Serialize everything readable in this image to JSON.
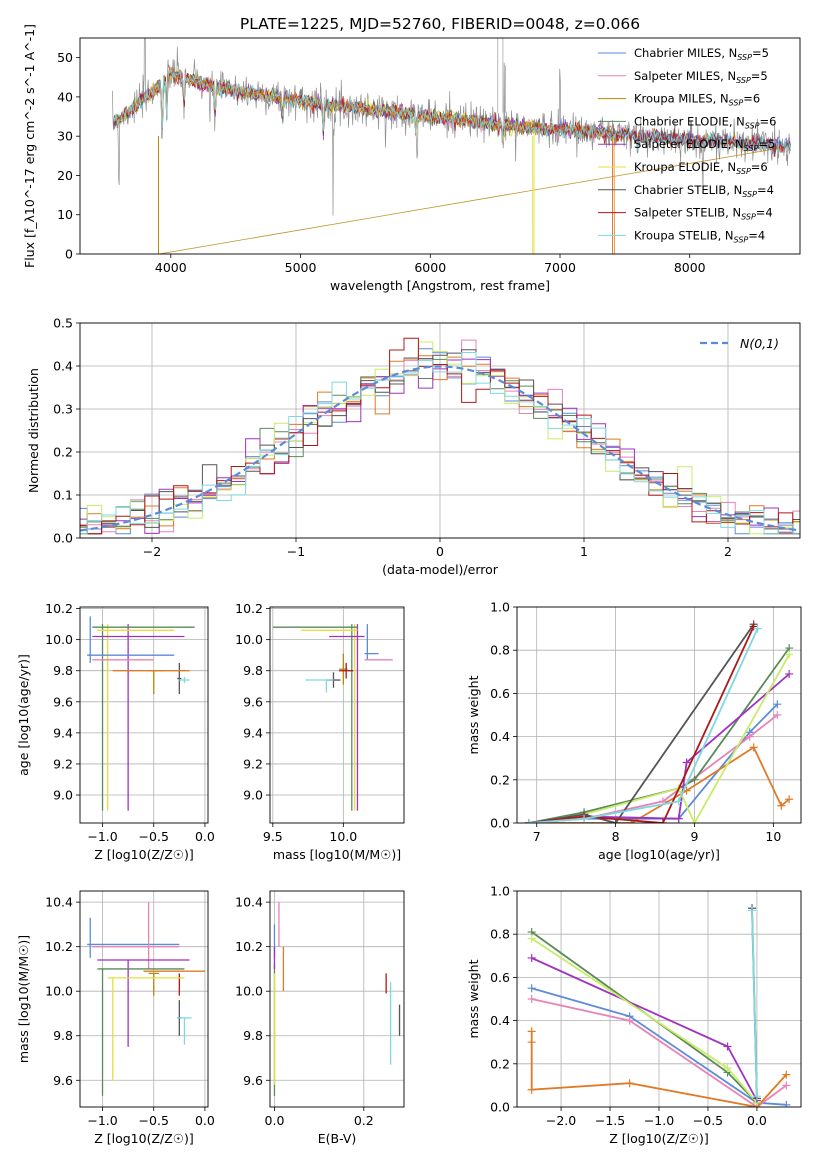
{
  "title": "PLATE=1225, MJD=52760, FIBERID=0048, z=0.066",
  "colors": {
    "c1": "#5b8bd8",
    "c2": "#e882b9",
    "c3": "#b8860b",
    "c4": "#5a8a5a",
    "c5": "#a032c0",
    "c6": "#e2e03c",
    "c7": "#555555",
    "c8": "#b01818",
    "c9": "#7fd8e0",
    "orange": "#e07a25",
    "lime": "#c8ec6a",
    "gray": "#909090",
    "dark": "#444444"
  },
  "chart_data": [
    {
      "id": "spectrum",
      "type": "line",
      "title": "PLATE=1225, MJD=52760, FIBERID=0048, z=0.066",
      "xlabel": "wavelength [Angstrom, rest frame]",
      "ylabel": "Flux [f_λ10^-17 erg cm^-2 s^-1 A^-1]",
      "xlim": [
        3300,
        8850
      ],
      "ylim": [
        0,
        55
      ],
      "xticks": [
        4000,
        5000,
        6000,
        7000,
        8000
      ],
      "yticks": [
        0,
        10,
        20,
        30,
        40,
        50
      ],
      "legend_position": "top-right",
      "legend": [
        {
          "text": "Chabrier MILES, N",
          "sub": "SSP",
          "tail": "=5"
        },
        {
          "text": "Salpeter MILES, N",
          "sub": "SSP",
          "tail": "=5"
        },
        {
          "text": "Kroupa MILES, N",
          "sub": "SSP",
          "tail": "=6"
        },
        {
          "text": "Chabrier ELODIE, N",
          "sub": "SSP",
          "tail": "=6"
        },
        {
          "text": "Salpeter ELODIE, N",
          "sub": "SSP",
          "tail": "=5"
        },
        {
          "text": "Kroupa ELODIE, N",
          "sub": "SSP",
          "tail": "=6"
        },
        {
          "text": "Chabrier STELIB, N",
          "sub": "SSP",
          "tail": "=4"
        },
        {
          "text": "Salpeter STELIB, N",
          "sub": "SSP",
          "tail": "=4"
        },
        {
          "text": "Kroupa STELIB, N",
          "sub": "SSP",
          "tail": "=4"
        }
      ],
      "continuum": [
        [
          3550,
          33
        ],
        [
          3700,
          37
        ],
        [
          3850,
          41
        ],
        [
          4000,
          46
        ],
        [
          4100,
          45
        ],
        [
          4200,
          44
        ],
        [
          4300,
          43
        ],
        [
          4400,
          42
        ],
        [
          4600,
          41
        ],
        [
          4800,
          40
        ],
        [
          5000,
          39
        ],
        [
          5200,
          38
        ],
        [
          5500,
          37
        ],
        [
          5800,
          36
        ],
        [
          6000,
          35
        ],
        [
          6300,
          34
        ],
        [
          6500,
          33
        ],
        [
          6800,
          32
        ],
        [
          7000,
          32
        ],
        [
          7300,
          31
        ],
        [
          7600,
          30
        ],
        [
          8000,
          29
        ],
        [
          8300,
          28.5
        ],
        [
          8600,
          28
        ],
        [
          8800,
          27.5
        ]
      ],
      "absorption_lines": [
        [
          3933,
          -14
        ],
        [
          3968,
          -10
        ],
        [
          4101,
          -8
        ],
        [
          4340,
          -9
        ],
        [
          4861,
          -6
        ],
        [
          5175,
          -8
        ],
        [
          5890,
          -5
        ],
        [
          6563,
          -4
        ],
        [
          7600,
          -3
        ]
      ],
      "spikes_data": [
        [
          3600,
          -15
        ],
        [
          3800,
          25
        ],
        [
          4300,
          -10
        ],
        [
          5250,
          -25
        ],
        [
          5900,
          -10
        ],
        [
          6570,
          20
        ],
        [
          7000,
          15
        ],
        [
          8100,
          -10
        ]
      ],
      "drops": [
        [
          3910,
          0
        ],
        [
          6790,
          0
        ],
        [
          7410,
          0
        ]
      ]
    },
    {
      "id": "residuals",
      "type": "histogram",
      "xlabel": "(data-model)/error",
      "ylabel": "Normed distribution",
      "xlim": [
        -2.5,
        2.5
      ],
      "ylim": [
        0,
        0.5
      ],
      "xticks": [
        -2,
        -1,
        0,
        1,
        2
      ],
      "yticks": [
        0.0,
        0.1,
        0.2,
        0.3,
        0.4,
        0.5
      ],
      "legend_position": "top-right",
      "legend_label": "N(0,1)",
      "bin_width": 0.1,
      "gaussian": {
        "mu": 0,
        "sigma": 1
      }
    },
    {
      "id": "age_vs_Z",
      "type": "errorbar",
      "xlabel": "Z [log10(Z/Z☉)]",
      "ylabel": "age [log10(age/yr)]",
      "xlim": [
        -1.22,
        0.03
      ],
      "ylim": [
        8.82,
        10.21
      ],
      "xticks": [
        -1.0,
        -0.5,
        0.0
      ],
      "yticks": [
        9.0,
        9.2,
        9.4,
        9.6,
        9.8,
        10.0,
        10.2
      ],
      "points": [
        {
          "x": -0.3,
          "xl": 0.85,
          "xh": 0.0,
          "y": 9.9,
          "yl": 0.0,
          "yh": 0.0,
          "c": "c1"
        },
        {
          "x": -0.5,
          "xl": 0.6,
          "xh": 0.0,
          "y": 9.87,
          "yl": 0.0,
          "yh": 0.0,
          "c": "c2"
        },
        {
          "x": -0.5,
          "xl": 0.05,
          "xh": 0.1,
          "y": 9.8,
          "yl": 0.15,
          "yh": 0.0,
          "c": "c3"
        },
        {
          "x": -0.55,
          "xl": 0.55,
          "xh": 0.45,
          "y": 10.08,
          "yl": 0.0,
          "yh": 0.0,
          "c": "c4"
        },
        {
          "x": -0.2,
          "xl": 0.9,
          "xh": 0.0,
          "y": 10.02,
          "yl": 0.0,
          "yh": 0.0,
          "c": "c5"
        },
        {
          "x": -0.65,
          "xl": 0.4,
          "xh": 0.35,
          "y": 10.06,
          "yl": 0.0,
          "yh": 0.0,
          "c": "c6"
        },
        {
          "x": -0.25,
          "xl": 0.02,
          "xh": 0.02,
          "y": 9.75,
          "yl": 0.1,
          "yh": 0.1,
          "c": "c7"
        },
        {
          "x": -0.5,
          "xl": 0.4,
          "xh": 0.35,
          "y": 9.8,
          "yl": 0.0,
          "yh": 0.0,
          "c": "orange"
        },
        {
          "x": -0.2,
          "xl": 0.05,
          "xh": 0.05,
          "y": 9.74,
          "yl": 0.02,
          "yh": 0.02,
          "c": "c9"
        }
      ],
      "vlines": [
        {
          "x": -1.0,
          "y0": 8.9,
          "y1": 10.1,
          "c": "c4"
        },
        {
          "x": -0.95,
          "y0": 8.9,
          "y1": 10.1,
          "c": "c6"
        },
        {
          "x": -0.75,
          "y0": 8.9,
          "y1": 10.1,
          "c": "c5"
        },
        {
          "x": -1.12,
          "y0": 9.85,
          "y1": 10.15,
          "c": "c1"
        }
      ]
    },
    {
      "id": "age_vs_mass",
      "type": "errorbar",
      "xlabel": "mass [log10(M/M☉)]",
      "ylabel": "",
      "xlim": [
        9.48,
        10.43
      ],
      "ylim": [
        8.82,
        10.21
      ],
      "xticks": [
        9.5,
        10.0
      ],
      "yticks": [
        9.0,
        9.2,
        9.4,
        9.6,
        9.8,
        10.0,
        10.2
      ],
      "points": [
        {
          "x": 10.2,
          "xl": 0.05,
          "xh": 0.05,
          "y": 9.91,
          "yl": 0.0,
          "yh": 0.0,
          "c": "c1"
        },
        {
          "x": 10.25,
          "xl": 0.1,
          "xh": 0.1,
          "y": 9.87,
          "yl": 0.0,
          "yh": 0.0,
          "c": "c2"
        },
        {
          "x": 10.0,
          "xl": 0.03,
          "xh": 0.03,
          "y": 9.81,
          "yl": 0.1,
          "yh": 0.1,
          "c": "c3"
        },
        {
          "x": 9.8,
          "xl": 0.3,
          "xh": 0.3,
          "y": 10.08,
          "yl": 0.0,
          "yh": 0.0,
          "c": "c4"
        },
        {
          "x": 10.05,
          "xl": 0.15,
          "xh": 0.1,
          "y": 10.02,
          "yl": 0.0,
          "yh": 0.0,
          "c": "c5"
        },
        {
          "x": 10.0,
          "xl": 0.3,
          "xh": 0.1,
          "y": 10.06,
          "yl": 0.0,
          "yh": 0.0,
          "c": "c6"
        },
        {
          "x": 9.93,
          "xl": 0.05,
          "xh": 0.05,
          "y": 9.74,
          "yl": 0.05,
          "yh": 0.05,
          "c": "c7"
        },
        {
          "x": 10.02,
          "xl": 0.05,
          "xh": 0.05,
          "y": 9.8,
          "yl": 0.05,
          "yh": 0.05,
          "c": "c8"
        },
        {
          "x": 9.88,
          "xl": 0.15,
          "xh": 0.05,
          "y": 9.74,
          "yl": 0.08,
          "yh": 0.0,
          "c": "c9"
        }
      ],
      "vlines": [
        {
          "x": 10.08,
          "y0": 8.9,
          "y1": 10.1,
          "c": "c6"
        },
        {
          "x": 10.1,
          "y0": 8.9,
          "y1": 10.1,
          "c": "c5"
        },
        {
          "x": 10.06,
          "y0": 8.9,
          "y1": 10.1,
          "c": "c4"
        },
        {
          "x": 10.17,
          "y0": 9.87,
          "y1": 10.1,
          "c": "c1"
        }
      ]
    },
    {
      "id": "massweight_vs_age",
      "type": "line",
      "xlabel": "age [log10(age/yr)]",
      "ylabel": "mass weight",
      "xlim": [
        6.75,
        10.35
      ],
      "ylim": [
        0,
        1.0
      ],
      "xticks": [
        7,
        8,
        9,
        10
      ],
      "yticks": [
        0.0,
        0.2,
        0.4,
        0.6,
        0.8,
        1.0
      ],
      "series": [
        {
          "c": "c1",
          "x": [
            6.9,
            7.6,
            8.8,
            9.7,
            10.05
          ],
          "y": [
            0.0,
            0.02,
            0.02,
            0.42,
            0.55
          ]
        },
        {
          "c": "c2",
          "x": [
            6.9,
            7.6,
            8.6,
            9.7,
            10.05
          ],
          "y": [
            0.0,
            0.02,
            0.1,
            0.4,
            0.5
          ]
        },
        {
          "c": "orange",
          "x": [
            6.9,
            8.2,
            8.9,
            9.75,
            10.1,
            10.2
          ],
          "y": [
            0.0,
            0.0,
            0.15,
            0.35,
            0.08,
            0.11
          ]
        },
        {
          "c": "c4",
          "x": [
            6.9,
            7.6,
            8.8,
            9.0,
            10.2
          ],
          "y": [
            0.0,
            0.05,
            0.16,
            0.2,
            0.81
          ]
        },
        {
          "c": "c5",
          "x": [
            6.9,
            7.6,
            8.8,
            8.9,
            10.2
          ],
          "y": [
            0.0,
            0.03,
            0.02,
            0.28,
            0.69
          ]
        },
        {
          "c": "lime",
          "x": [
            6.9,
            7.6,
            8.8,
            9.0,
            10.2
          ],
          "y": [
            0.0,
            0.04,
            0.16,
            0.0,
            0.78
          ]
        },
        {
          "c": "c7",
          "x": [
            6.9,
            7.6,
            8.0,
            9.75
          ],
          "y": [
            0.0,
            0.04,
            0.0,
            0.92
          ]
        },
        {
          "c": "c8",
          "x": [
            6.9,
            7.6,
            8.6,
            9.75
          ],
          "y": [
            0.0,
            0.03,
            0.0,
            0.91
          ]
        },
        {
          "c": "c9",
          "x": [
            6.9,
            7.6,
            8.8,
            9.8
          ],
          "y": [
            0.0,
            0.02,
            0.1,
            0.9
          ]
        }
      ]
    },
    {
      "id": "mass_vs_Z",
      "type": "errorbar",
      "xlabel": "Z [log10(Z/Z☉)]",
      "ylabel": "mass [log10(M/M☉)]",
      "xlim": [
        -1.22,
        0.03
      ],
      "ylim": [
        9.48,
        10.45
      ],
      "xticks": [
        -1.0,
        -0.5,
        0.0
      ],
      "yticks": [
        9.6,
        9.8,
        10.0,
        10.2,
        10.4
      ],
      "points": [
        {
          "x": -0.7,
          "xl": 0.45,
          "xh": 0.45,
          "y": 10.21,
          "yl": 0.0,
          "yh": 0.0,
          "c": "c1"
        },
        {
          "x": -0.55,
          "xl": 0.55,
          "xh": 0.3,
          "y": 10.2,
          "yl": 0.1,
          "yh": 0.2,
          "c": "c2"
        },
        {
          "x": -0.5,
          "xl": 0.05,
          "xh": 0.05,
          "y": 10.08,
          "yl": 0.1,
          "yh": 0.0,
          "c": "c3"
        },
        {
          "x": -0.55,
          "xl": 0.5,
          "xh": 0.35,
          "y": 10.1,
          "yl": 0.0,
          "yh": 0.0,
          "c": "c4"
        },
        {
          "x": -0.5,
          "xl": 0.55,
          "xh": 0.35,
          "y": 10.14,
          "yl": 0.0,
          "yh": 0.0,
          "c": "c5"
        },
        {
          "x": -0.5,
          "xl": 0.45,
          "xh": 0.3,
          "y": 10.06,
          "yl": 0.0,
          "yh": 0.0,
          "c": "c6"
        },
        {
          "x": -0.25,
          "xl": 0.02,
          "xh": 0.02,
          "y": 9.88,
          "yl": 0.08,
          "yh": 0.08,
          "c": "c7"
        },
        {
          "x": -0.3,
          "xl": 0.3,
          "xh": 0.3,
          "y": 10.09,
          "yl": 0.0,
          "yh": 0.0,
          "c": "orange"
        },
        {
          "x": -0.2,
          "xl": 0.07,
          "xh": 0.07,
          "y": 9.88,
          "yl": 0.12,
          "yh": 0.0,
          "c": "c9"
        }
      ],
      "vlines": [
        {
          "x": -1.0,
          "y0": 9.53,
          "y1": 10.1,
          "c": "c4"
        },
        {
          "x": -0.9,
          "y0": 9.6,
          "y1": 10.06,
          "c": "c6"
        },
        {
          "x": -0.75,
          "y0": 9.75,
          "y1": 10.14,
          "c": "c5"
        },
        {
          "x": -1.12,
          "y0": 10.15,
          "y1": 10.33,
          "c": "c1"
        },
        {
          "x": -0.25,
          "y0": 9.98,
          "y1": 10.08,
          "c": "c8"
        }
      ]
    },
    {
      "id": "mass_vs_EBV",
      "type": "errorbar",
      "xlabel": "E(B-V)",
      "ylabel": "",
      "xlim": [
        -0.01,
        0.29
      ],
      "ylim": [
        9.48,
        10.45
      ],
      "xticks": [
        0.0,
        0.2
      ],
      "yticks": [
        9.6,
        9.8,
        10.0,
        10.2,
        10.4
      ],
      "vlines": [
        {
          "x": 0.0,
          "y0": 10.15,
          "y1": 10.3,
          "c": "c1"
        },
        {
          "x": 0.01,
          "y0": 10.2,
          "y1": 10.4,
          "c": "c2"
        },
        {
          "x": 0.02,
          "y0": 10.0,
          "y1": 10.2,
          "c": "orange"
        },
        {
          "x": 0.0,
          "y0": 9.53,
          "y1": 10.12,
          "c": "c4"
        },
        {
          "x": 0.0,
          "y0": 10.1,
          "y1": 10.2,
          "c": "c5"
        },
        {
          "x": 0.0,
          "y0": 9.58,
          "y1": 10.08,
          "c": "c6"
        },
        {
          "x": 0.28,
          "y0": 9.8,
          "y1": 9.94,
          "c": "c7"
        },
        {
          "x": 0.25,
          "y0": 9.99,
          "y1": 10.08,
          "c": "c8"
        },
        {
          "x": 0.26,
          "y0": 9.67,
          "y1": 10.04,
          "c": "c9"
        }
      ]
    },
    {
      "id": "massweight_vs_Z",
      "type": "line",
      "xlabel": "Z [log10(Z/Z☉)]",
      "ylabel": "mass weight",
      "xlim": [
        -2.45,
        0.45
      ],
      "ylim": [
        0,
        1.0
      ],
      "xticks": [
        -2.0,
        -1.5,
        -1.0,
        -0.5,
        0.0
      ],
      "yticks": [
        0.0,
        0.2,
        0.4,
        0.6,
        0.8,
        1.0
      ],
      "series": [
        {
          "c": "c1",
          "x": [
            -2.3,
            -1.3,
            0.0,
            0.3
          ],
          "y": [
            0.55,
            0.42,
            0.02,
            0.01
          ]
        },
        {
          "c": "c2",
          "x": [
            -2.3,
            -1.3,
            0.0,
            0.3
          ],
          "y": [
            0.5,
            0.4,
            0.0,
            0.1
          ]
        },
        {
          "c": "orange",
          "x": [
            -2.3,
            -2.3,
            -2.3,
            -1.3,
            0.0,
            0.3
          ],
          "y": [
            0.35,
            0.3,
            0.08,
            0.11,
            0.0,
            0.15
          ]
        },
        {
          "c": "c4",
          "x": [
            -2.3,
            -0.3,
            0.0
          ],
          "y": [
            0.81,
            0.16,
            0.02
          ]
        },
        {
          "c": "c5",
          "x": [
            -2.3,
            -0.3,
            0.0
          ],
          "y": [
            0.69,
            0.28,
            0.03
          ]
        },
        {
          "c": "lime",
          "x": [
            -2.3,
            -0.3,
            0.0
          ],
          "y": [
            0.78,
            0.18,
            0.02
          ]
        },
        {
          "c": "c7",
          "x": [
            -0.05,
            0.0
          ],
          "y": [
            0.92,
            0.04
          ]
        },
        {
          "c": "c9",
          "x": [
            -0.05,
            0.0
          ],
          "y": [
            0.91,
            0.05
          ]
        }
      ]
    }
  ]
}
